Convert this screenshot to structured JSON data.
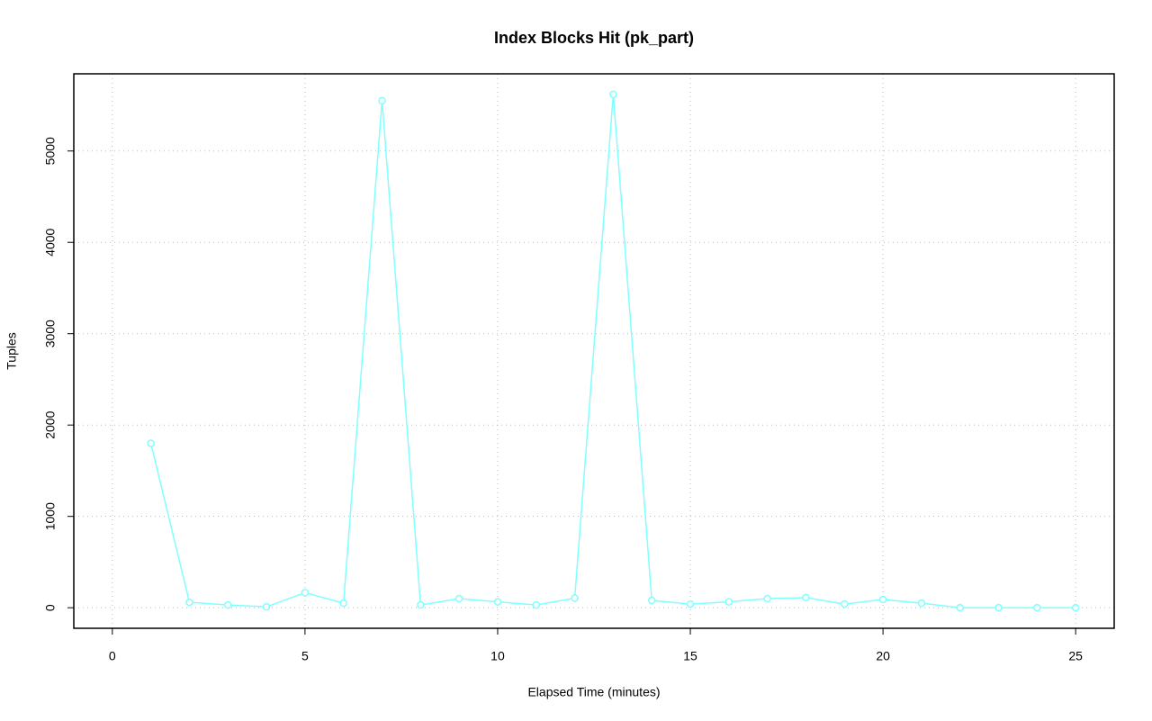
{
  "chart_data": {
    "type": "line",
    "title": "Index Blocks Hit (pk_part)",
    "xlabel": "Elapsed Time (minutes)",
    "ylabel": "Tuples",
    "x": [
      1,
      2,
      3,
      4,
      5,
      6,
      7,
      8,
      9,
      10,
      11,
      12,
      13,
      14,
      15,
      16,
      17,
      18,
      19,
      20,
      21,
      22,
      23,
      24,
      25
    ],
    "series": [
      {
        "name": "pk_part",
        "color": "#80ffff",
        "values": [
          1800,
          60,
          30,
          10,
          165,
          50,
          5550,
          30,
          100,
          65,
          30,
          105,
          5620,
          80,
          40,
          65,
          100,
          110,
          40,
          90,
          50,
          0,
          0,
          0,
          0
        ]
      }
    ],
    "xlim": [
      -1,
      26
    ],
    "ylim": [
      -225,
      5845
    ],
    "xticks": [
      0,
      5,
      10,
      15,
      20,
      25
    ],
    "yticks": [
      0,
      1000,
      2000,
      3000,
      4000,
      5000
    ],
    "grid": true
  }
}
